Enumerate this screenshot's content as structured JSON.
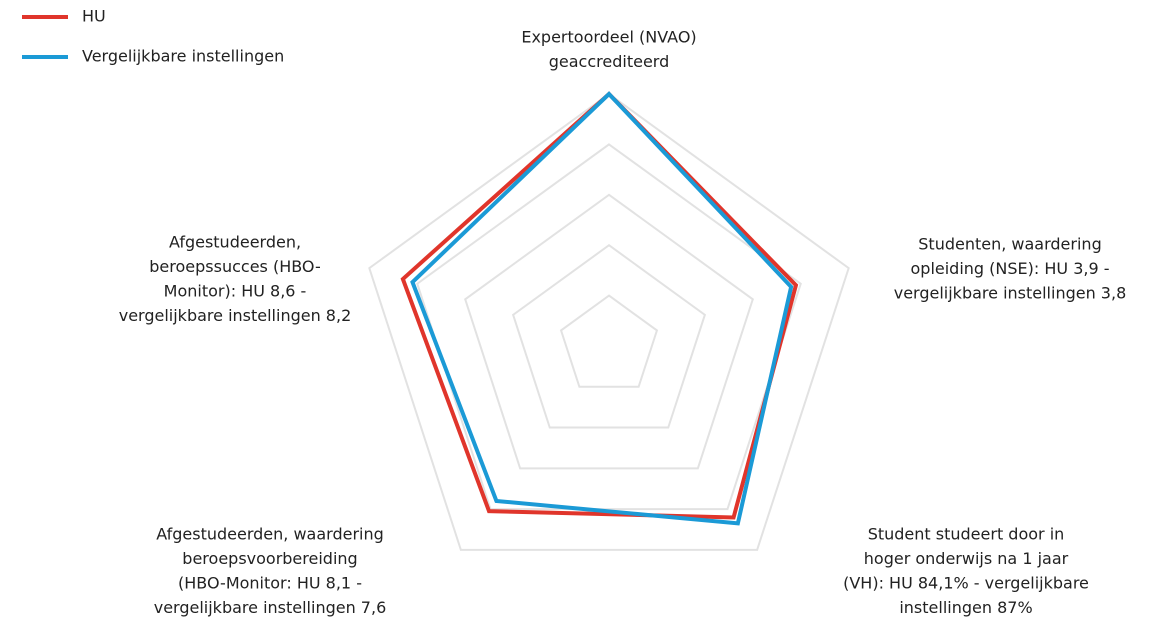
{
  "chart_data": {
    "type": "radar",
    "categories": [
      [
        "Expertoordeel (NVAO)",
        "geaccrediteerd"
      ],
      [
        "Studenten, waardering",
        "opleiding (NSE): HU 3,9 -",
        "vergelijkbare instellingen 3,8"
      ],
      [
        "Student studeert door in",
        "hoger onderwijs na 1 jaar",
        "(VH): HU 84,1% - vergelijkbare",
        "instellingen 87%"
      ],
      [
        "Afgestudeerden, waardering",
        "beroepsvoorbereiding",
        "(HBO-Monitor: HU 8,1 -",
        "vergelijkbare instellingen 7,6"
      ],
      [
        "Afgestudeerden,",
        "beroepssucces (HBO-",
        "Monitor): HU 8,6 -",
        "vergelijkbare instellingen 8,2"
      ]
    ],
    "series": [
      {
        "name": "HU",
        "color": "#e0352b",
        "values": [
          100,
          78,
          84.1,
          81,
          86
        ]
      },
      {
        "name": "Vergelijkbare instellingen",
        "color": "#1b9ad6",
        "values": [
          100,
          76,
          87,
          76,
          82
        ]
      }
    ],
    "rlim": [
      0,
      100
    ],
    "rticks": [
      20,
      40,
      60,
      80,
      100
    ],
    "grid": true,
    "legend": "top-left"
  }
}
